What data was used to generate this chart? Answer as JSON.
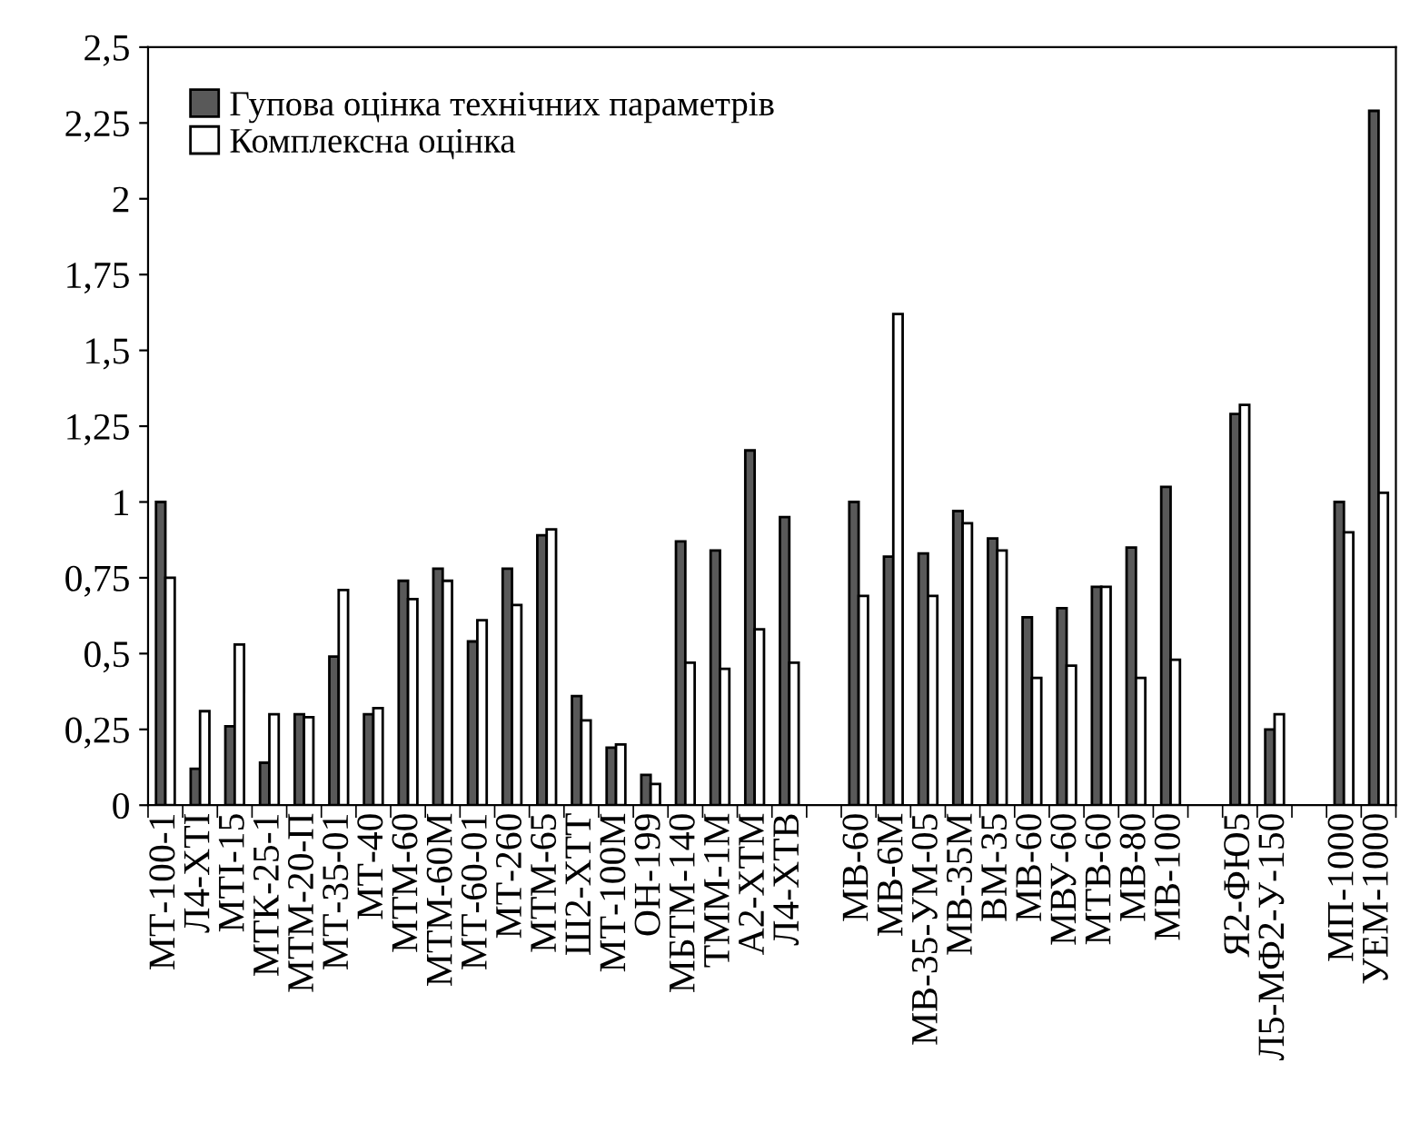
{
  "chart_data": {
    "type": "bar",
    "categories": [
      "МТ-100-1",
      "Л4-ХТІ",
      "МТІ-15",
      "МТК-25-1",
      "МТМ-20-П",
      "МТ-35-01",
      "МТ-40",
      "МТМ-60",
      "МТМ-60М",
      "МТ-60-01",
      "МТ-260",
      "МТМ-65",
      "Ш2-ХТТ",
      "МТ-100М",
      "ОН-199",
      "МБТМ-140",
      "ТММ-1М",
      "А2-ХТМ",
      "Л4-ХТВ",
      null,
      "МВ-60",
      "МВ-6М",
      "МВ-35-УМ-05",
      "МВ-35М",
      "ВМ-35",
      "МВ-60",
      "МВУ-60",
      "МТВ-60",
      "МВ-80",
      "МВ-100",
      null,
      "Я2-ФЮ5",
      "Л5-МФ2-У-150",
      null,
      "МП-1000",
      "УЕМ-1000"
    ],
    "series": [
      {
        "name": "Гупова оцінка технічних параметрів",
        "color": "#595959",
        "values": [
          1.0,
          0.12,
          0.26,
          0.14,
          0.3,
          0.49,
          0.3,
          0.74,
          0.78,
          0.54,
          0.78,
          0.89,
          0.36,
          0.19,
          0.1,
          0.87,
          0.84,
          1.17,
          0.95,
          null,
          1.0,
          0.82,
          0.83,
          0.97,
          0.88,
          0.62,
          0.65,
          0.72,
          0.85,
          1.05,
          null,
          1.29,
          0.25,
          null,
          1.0,
          2.29
        ]
      },
      {
        "name": "Комплексна оцінка",
        "color": "#ffffff",
        "values": [
          0.75,
          0.31,
          0.53,
          0.3,
          0.29,
          0.71,
          0.32,
          0.68,
          0.74,
          0.61,
          0.66,
          0.91,
          0.28,
          0.2,
          0.07,
          0.47,
          0.45,
          0.58,
          0.47,
          null,
          0.69,
          1.62,
          0.69,
          0.93,
          0.84,
          0.42,
          0.46,
          0.72,
          0.42,
          0.48,
          null,
          1.32,
          0.3,
          null,
          0.9,
          1.03
        ]
      }
    ],
    "ylim": [
      0,
      2.5
    ],
    "yticks": [
      0,
      {
        "value": 0.25,
        "label": "0,25"
      },
      {
        "value": 0.5,
        "label": "0,5"
      },
      {
        "value": 0.75,
        "label": "0,75"
      },
      1,
      {
        "value": 1.25,
        "label": "1,25"
      },
      {
        "value": 1.5,
        "label": "1,5"
      },
      {
        "value": 1.75,
        "label": "1,75"
      },
      2,
      {
        "value": 2.25,
        "label": "2,25"
      },
      {
        "value": 2.5,
        "label": "2,5"
      }
    ],
    "grid": false,
    "legend": "top left"
  }
}
